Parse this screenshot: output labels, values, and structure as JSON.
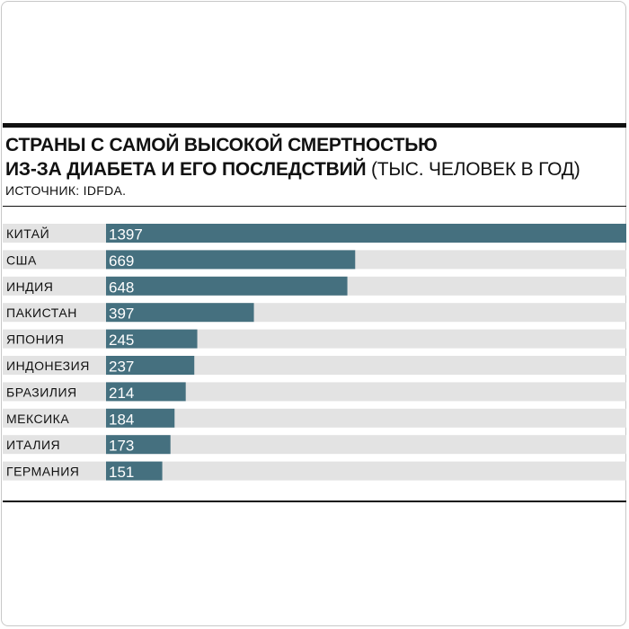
{
  "title_bold_line1": "СТРАНЫ С САМОЙ ВЫСОКОЙ СМЕРТНОСТЬЮ",
  "title_bold_line2": "ИЗ-ЗА ДИАБЕТА И ЕГО ПОСЛЕДСТВИЙ",
  "title_unit": "(ТЫС. ЧЕЛОВЕК В ГОД)",
  "source": "ИСТОЧНИК: IDFDA.",
  "colors": {
    "bar": "#45707f",
    "track": "#e3e3e3"
  },
  "chart_data": {
    "type": "bar",
    "orientation": "horizontal",
    "categories": [
      "КИТАЙ",
      "США",
      "ИНДИЯ",
      "ПАКИСТАН",
      "ЯПОНИЯ",
      "ИНДОНЕЗИЯ",
      "БРАЗИЛИЯ",
      "МЕКСИКА",
      "ИТАЛИЯ",
      "ГЕРМАНИЯ"
    ],
    "values": [
      1397,
      669,
      648,
      397,
      245,
      237,
      214,
      184,
      173,
      151
    ],
    "xlim": [
      0,
      1397
    ],
    "grid": false
  }
}
